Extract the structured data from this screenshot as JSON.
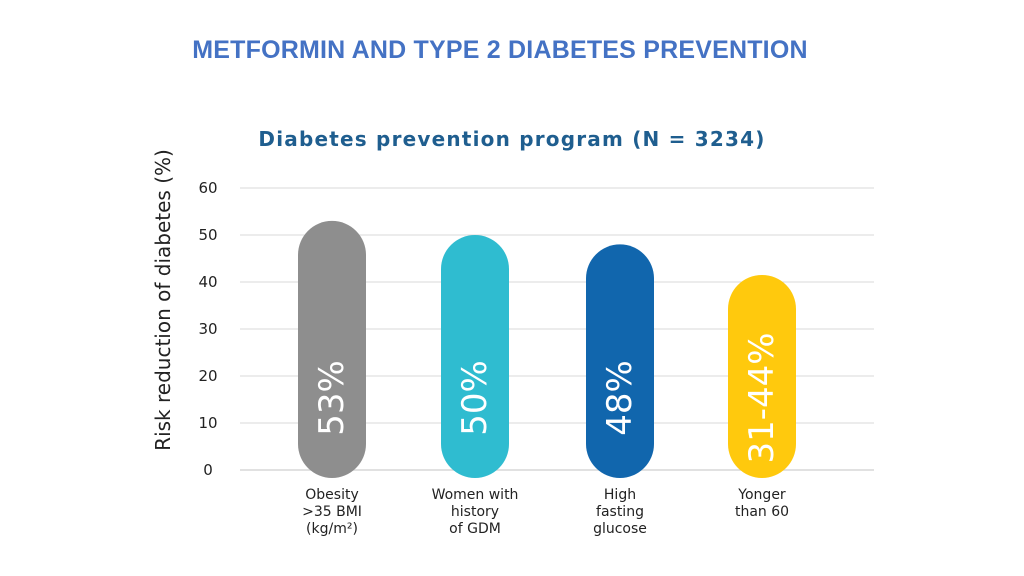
{
  "slide": {
    "title": "METFORMIN AND TYPE 2 DIABETES PREVENTION"
  },
  "chart_data": {
    "type": "bar",
    "title": "Diabetes prevention program (N = 3234)",
    "xlabel": "",
    "ylabel": "Risk reduction of diabetes (%)",
    "ylim": [
      0,
      60
    ],
    "yticks": [
      0,
      10,
      20,
      30,
      40,
      50,
      60
    ],
    "grid": true,
    "categories": [
      [
        "Obesity",
        ">35 BMI",
        "(kg/m²)"
      ],
      [
        "Women with",
        "history",
        "of GDM"
      ],
      [
        "High",
        "fasting",
        "glucose"
      ],
      [
        "Yonger",
        "than 60"
      ]
    ],
    "values": [
      53,
      50,
      48,
      41.5
    ],
    "data_labels": [
      "53%",
      "50%",
      "48%",
      "31-44%"
    ],
    "colors": [
      "#8e8e8e",
      "#2fbcd0",
      "#1166ad",
      "#ffc90d"
    ]
  }
}
